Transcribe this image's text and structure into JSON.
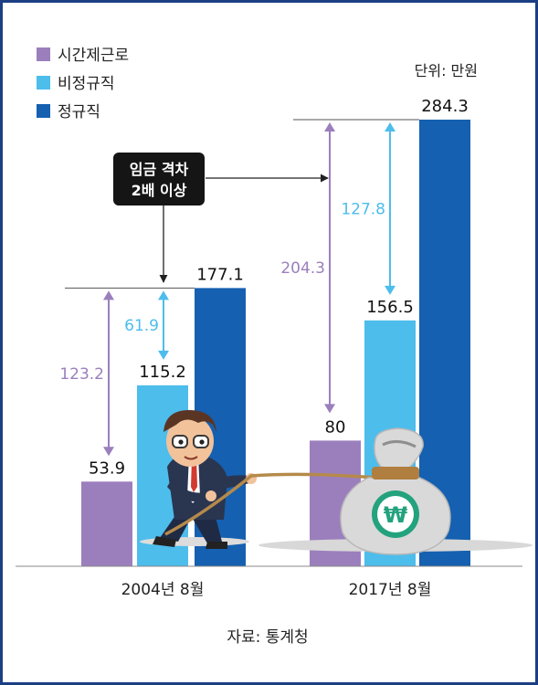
{
  "chart_data": {
    "type": "bar",
    "title": "",
    "unit_note": "단위: 만원",
    "source": "자료: 통계청",
    "categories": [
      "2004년 8월",
      "2017년 8월"
    ],
    "series": [
      {
        "name": "시간제근로",
        "color": "#9b7fbd",
        "values": [
          53.9,
          80
        ]
      },
      {
        "name": "비정규직",
        "color": "#4dbdec",
        "values": [
          115.2,
          156.5
        ]
      },
      {
        "name": "정규직",
        "color": "#1560b0",
        "values": [
          177.1,
          284.3
        ]
      }
    ],
    "value_labels": [
      [
        "53.9",
        "115.2",
        "177.1"
      ],
      [
        "80",
        "156.5",
        "284.3"
      ]
    ],
    "ylim": [
      0,
      284.3
    ],
    "grid": false,
    "legend_position": "top-left",
    "gaps": [
      {
        "group": 0,
        "label": "123.2",
        "color": "#9b7fbd",
        "from": 53.9,
        "to": 177.1
      },
      {
        "group": 0,
        "label": "61.9",
        "color": "#4dbdec",
        "from": 115.2,
        "to": 177.1
      },
      {
        "group": 1,
        "label": "204.3",
        "color": "#9b7fbd",
        "from": 80,
        "to": 284.3
      },
      {
        "group": 1,
        "label": "127.8",
        "color": "#4dbdec",
        "from": 156.5,
        "to": 284.3
      }
    ],
    "callout": {
      "line1": "임금 격차",
      "line2": "2배 이상"
    }
  },
  "illustration": {
    "bag_symbol": "₩",
    "icons": [
      "businessman-icon",
      "money-bag-icon"
    ]
  }
}
